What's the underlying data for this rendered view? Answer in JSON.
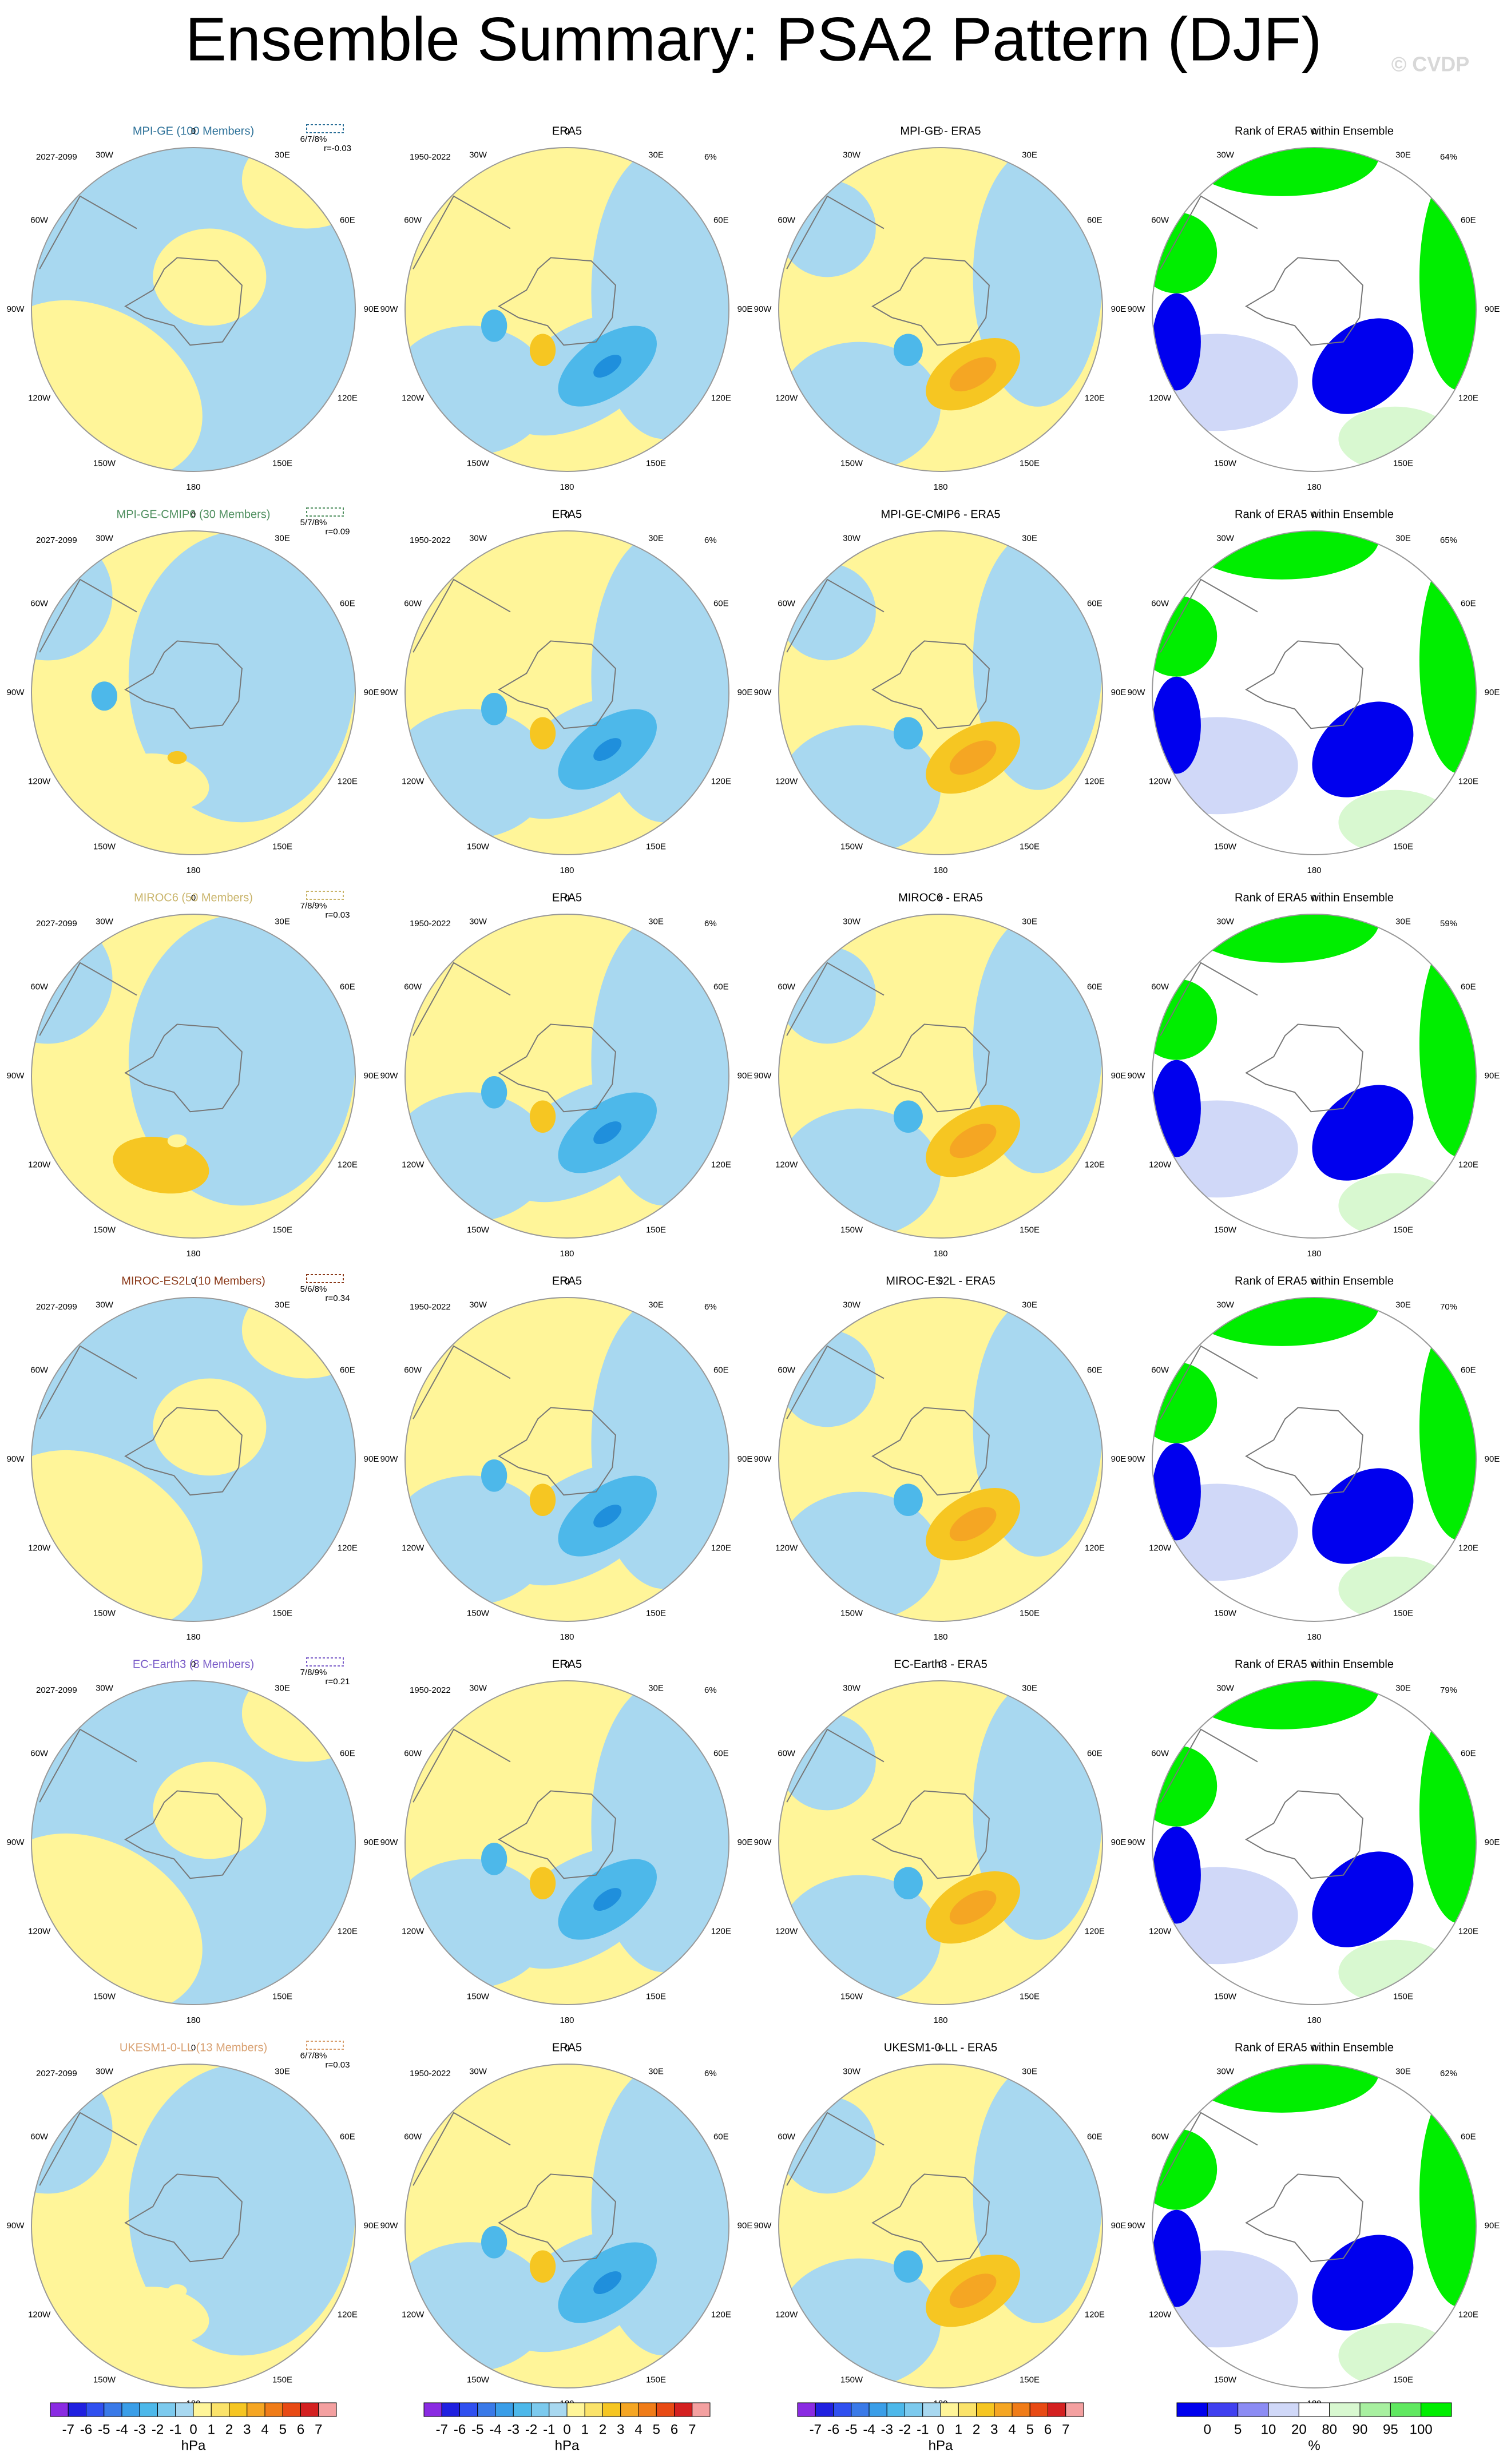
{
  "title": "Ensemble Summary: PSA2 Pattern (DJF)",
  "watermark": "© CVDP",
  "era5_title": "ERA5",
  "era5_period": "1950-2022",
  "era5_pct": "6%",
  "rank_title": "Rank of ERA5 within Ensemble",
  "lon_labels": [
    "0",
    "30E",
    "60E",
    "90E",
    "120E",
    "150E",
    "180",
    "150W",
    "120W",
    "90W",
    "60W",
    "30W"
  ],
  "rows": [
    {
      "model": "MPI-GE (100 Members)",
      "color": "#2a6f97",
      "period": "2027-2099",
      "stats": "6/7/8%",
      "r": "r=-0.03",
      "diff_title": "MPI-GE - ERA5",
      "rank_pct": "64%"
    },
    {
      "model": "MPI-GE-CMIP6 (30 Members)",
      "color": "#4f8f5f",
      "period": "2027-2099",
      "stats": "5/7/8%",
      "r": "r=0.09",
      "diff_title": "MPI-GE-CMIP6 - ERA5",
      "rank_pct": "65%"
    },
    {
      "model": "MIROC6 (50 Members)",
      "color": "#c9b46a",
      "period": "2027-2099",
      "stats": "7/8/9%",
      "r": "r=0.03",
      "diff_title": "MIROC6 - ERA5",
      "rank_pct": "59%"
    },
    {
      "model": "MIROC-ES2L (10 Members)",
      "color": "#8b3a1a",
      "period": "2027-2099",
      "stats": "5/6/8%",
      "r": "r=0.34",
      "diff_title": "MIROC-ES2L - ERA5",
      "rank_pct": "70%"
    },
    {
      "model": "EC-Earth3 (8 Members)",
      "color": "#7a5cc8",
      "period": "2027-2099",
      "stats": "7/8/9%",
      "r": "r=0.21",
      "diff_title": "EC-Earth3 - ERA5",
      "rank_pct": "79%"
    },
    {
      "model": "UKESM1-0-LL (13 Members)",
      "color": "#d8a070",
      "period": "2027-2099",
      "stats": "6/7/8%",
      "r": "r=0.03",
      "diff_title": "UKESM1-0-LL - ERA5",
      "rank_pct": "62%"
    }
  ],
  "colorbar_hpa": {
    "colors": [
      "#8a2be2",
      "#2020e0",
      "#3050f0",
      "#3a7ae8",
      "#3a9ee8",
      "#4db8ea",
      "#7ccaee",
      "#a8d8f0",
      "#fff599",
      "#fbe36a",
      "#f6c622",
      "#f5a623",
      "#f07c18",
      "#e84a14",
      "#d42020",
      "#f4a0a0"
    ],
    "labels": [
      -7,
      -6,
      -5,
      -4,
      -3,
      -2,
      -1,
      0,
      1,
      2,
      3,
      4,
      5,
      6,
      7
    ],
    "unit": "hPa"
  },
  "colorbar_rank": {
    "colors": [
      "#0000ee",
      "#4040f0",
      "#8c8cf4",
      "#d0d8f8",
      "#ffffff",
      "#d8f8d0",
      "#a8f0a0",
      "#60e860",
      "#00ee00"
    ],
    "labels": [
      0,
      5,
      10,
      20,
      80,
      90,
      95,
      100
    ],
    "unit": "%"
  }
}
